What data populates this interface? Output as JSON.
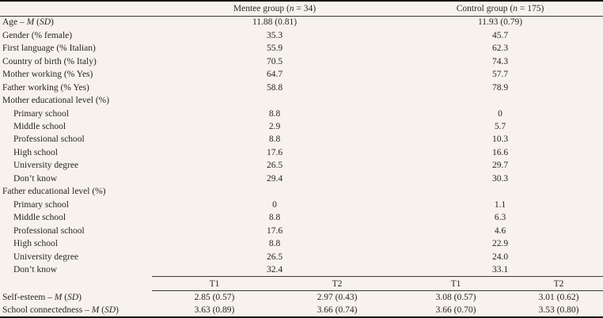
{
  "page": {
    "background_color": "#f7f3ec",
    "text_color": "#282420",
    "rule_color": "#3a3631",
    "heavy_rule_color": "#191613"
  },
  "table": {
    "group_headers": [
      {
        "segments": [
          {
            "t": "Mentee group ("
          },
          {
            "t": "n",
            "i": true
          },
          {
            "t": " = 34)"
          }
        ]
      },
      {
        "segments": [
          {
            "t": "Control group ("
          },
          {
            "t": "n",
            "i": true
          },
          {
            "t": " = 175)"
          }
        ]
      }
    ],
    "demographic_rows": [
      {
        "indent": false,
        "segments": [
          {
            "t": "Age – "
          },
          {
            "t": "M",
            "i": true
          },
          {
            "t": " ("
          },
          {
            "t": "SD",
            "i": true
          },
          {
            "t": ")"
          }
        ],
        "values": [
          "11.88 (0.81)",
          "11.93 (0.79)"
        ]
      },
      {
        "indent": false,
        "segments": [
          {
            "t": "Gender (% female)"
          }
        ],
        "values": [
          "35.3",
          "45.7"
        ]
      },
      {
        "indent": false,
        "segments": [
          {
            "t": "First language (% Italian)"
          }
        ],
        "values": [
          "55.9",
          "62.3"
        ]
      },
      {
        "indent": false,
        "segments": [
          {
            "t": "Country of birth (% Italy)"
          }
        ],
        "values": [
          "70.5",
          "74.3"
        ]
      },
      {
        "indent": false,
        "segments": [
          {
            "t": "Mother working (% Yes)"
          }
        ],
        "values": [
          "64.7",
          "57.7"
        ]
      },
      {
        "indent": false,
        "segments": [
          {
            "t": "Father working (% Yes)"
          }
        ],
        "values": [
          "58.8",
          "78.9"
        ]
      },
      {
        "indent": false,
        "segments": [
          {
            "t": "Mother educational level (%)"
          }
        ],
        "values": [
          "",
          ""
        ]
      },
      {
        "indent": true,
        "segments": [
          {
            "t": "Primary school"
          }
        ],
        "values": [
          "8.8",
          "0"
        ]
      },
      {
        "indent": true,
        "segments": [
          {
            "t": "Middle school"
          }
        ],
        "values": [
          "2.9",
          "5.7"
        ]
      },
      {
        "indent": true,
        "segments": [
          {
            "t": "Professional school"
          }
        ],
        "values": [
          "8.8",
          "10.3"
        ]
      },
      {
        "indent": true,
        "segments": [
          {
            "t": "High school"
          }
        ],
        "values": [
          "17.6",
          "16.6"
        ]
      },
      {
        "indent": true,
        "segments": [
          {
            "t": "University degree"
          }
        ],
        "values": [
          "26.5",
          "29.7"
        ]
      },
      {
        "indent": true,
        "segments": [
          {
            "t": "Don’t know"
          }
        ],
        "values": [
          "29.4",
          "30.3"
        ]
      },
      {
        "indent": false,
        "segments": [
          {
            "t": "Father educational level (%)"
          }
        ],
        "values": [
          "",
          ""
        ]
      },
      {
        "indent": true,
        "segments": [
          {
            "t": "Primary school"
          }
        ],
        "values": [
          "0",
          "1.1"
        ]
      },
      {
        "indent": true,
        "segments": [
          {
            "t": "Middle school"
          }
        ],
        "values": [
          "8.8",
          "6.3"
        ]
      },
      {
        "indent": true,
        "segments": [
          {
            "t": "Professional school"
          }
        ],
        "values": [
          "17.6",
          "4.6"
        ]
      },
      {
        "indent": true,
        "segments": [
          {
            "t": "High school"
          }
        ],
        "values": [
          "8.8",
          "22.9"
        ]
      },
      {
        "indent": true,
        "segments": [
          {
            "t": "University degree"
          }
        ],
        "values": [
          "26.5",
          "24.0"
        ]
      },
      {
        "indent": true,
        "segments": [
          {
            "t": "Don’t know"
          }
        ],
        "values": [
          "32.4",
          "33.1"
        ]
      }
    ],
    "time_headers": [
      "T1",
      "T2",
      "T1",
      "T2"
    ],
    "outcome_rows": [
      {
        "segments": [
          {
            "t": "Self-esteem – "
          },
          {
            "t": "M",
            "i": true
          },
          {
            "t": " ("
          },
          {
            "t": "SD",
            "i": true
          },
          {
            "t": ")"
          }
        ],
        "values": [
          "2.85 (0.57)",
          "2.97 (0.43)",
          "3.08 (0.57)",
          "3.01 (0.62)"
        ]
      },
      {
        "segments": [
          {
            "t": "School connectedness – "
          },
          {
            "t": "M",
            "i": true
          },
          {
            "t": " ("
          },
          {
            "t": "SD",
            "i": true
          },
          {
            "t": ")"
          }
        ],
        "values": [
          "3.63 (0.89)",
          "3.66 (0.74)",
          "3.66 (0.70)",
          "3.53 (0.80)"
        ]
      }
    ]
  }
}
